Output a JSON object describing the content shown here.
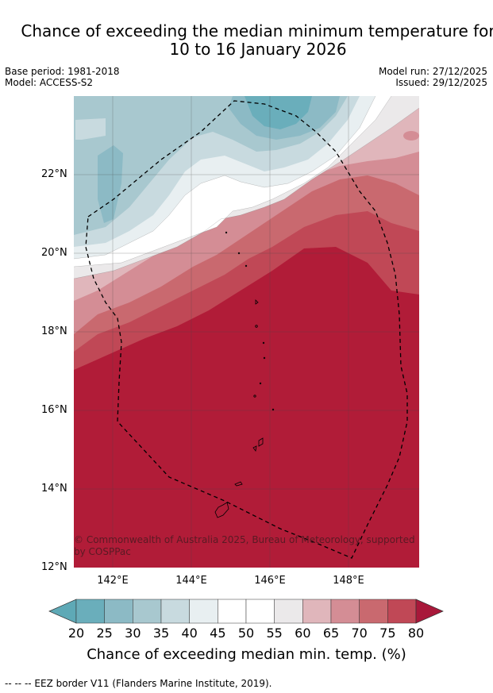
{
  "title_line1": "Chance of exceeding the median minimum temperature for",
  "title_line2": "10 to 16 January 2026",
  "base_period": "Base period: 1981-2018",
  "model": "Model: ACCESS-S2",
  "model_run": "Model run: 27/12/2025",
  "issued": "Issued: 29/12/2025",
  "y_ticks": [
    "22°N",
    "20°N",
    "18°N",
    "16°N",
    "14°N",
    "12°N"
  ],
  "x_ticks": [
    "142°E",
    "144°E",
    "146°E",
    "148°E"
  ],
  "copyright": "© Commonwealth of Australia 2025, Bureau of Meteorology, supported by COSPPac",
  "colorbar": {
    "ticks": [
      "20",
      "25",
      "30",
      "35",
      "40",
      "45",
      "50",
      "55",
      "60",
      "65",
      "70",
      "75",
      "80"
    ],
    "colors": [
      "#6aaebb",
      "#8cbac5",
      "#a8c8cf",
      "#c8dadf",
      "#e8eff1",
      "#ffffff",
      "#ffffff",
      "#ebe9ea",
      "#e0b6bb",
      "#d48d95",
      "#c9696f",
      "#c04856",
      "#b11c38"
    ],
    "title": "Chance of exceeding median min. temp. (%)"
  },
  "legend_footer": "--  --  -- EEZ border V11 (Flanders Marine Institute, 2019)."
}
